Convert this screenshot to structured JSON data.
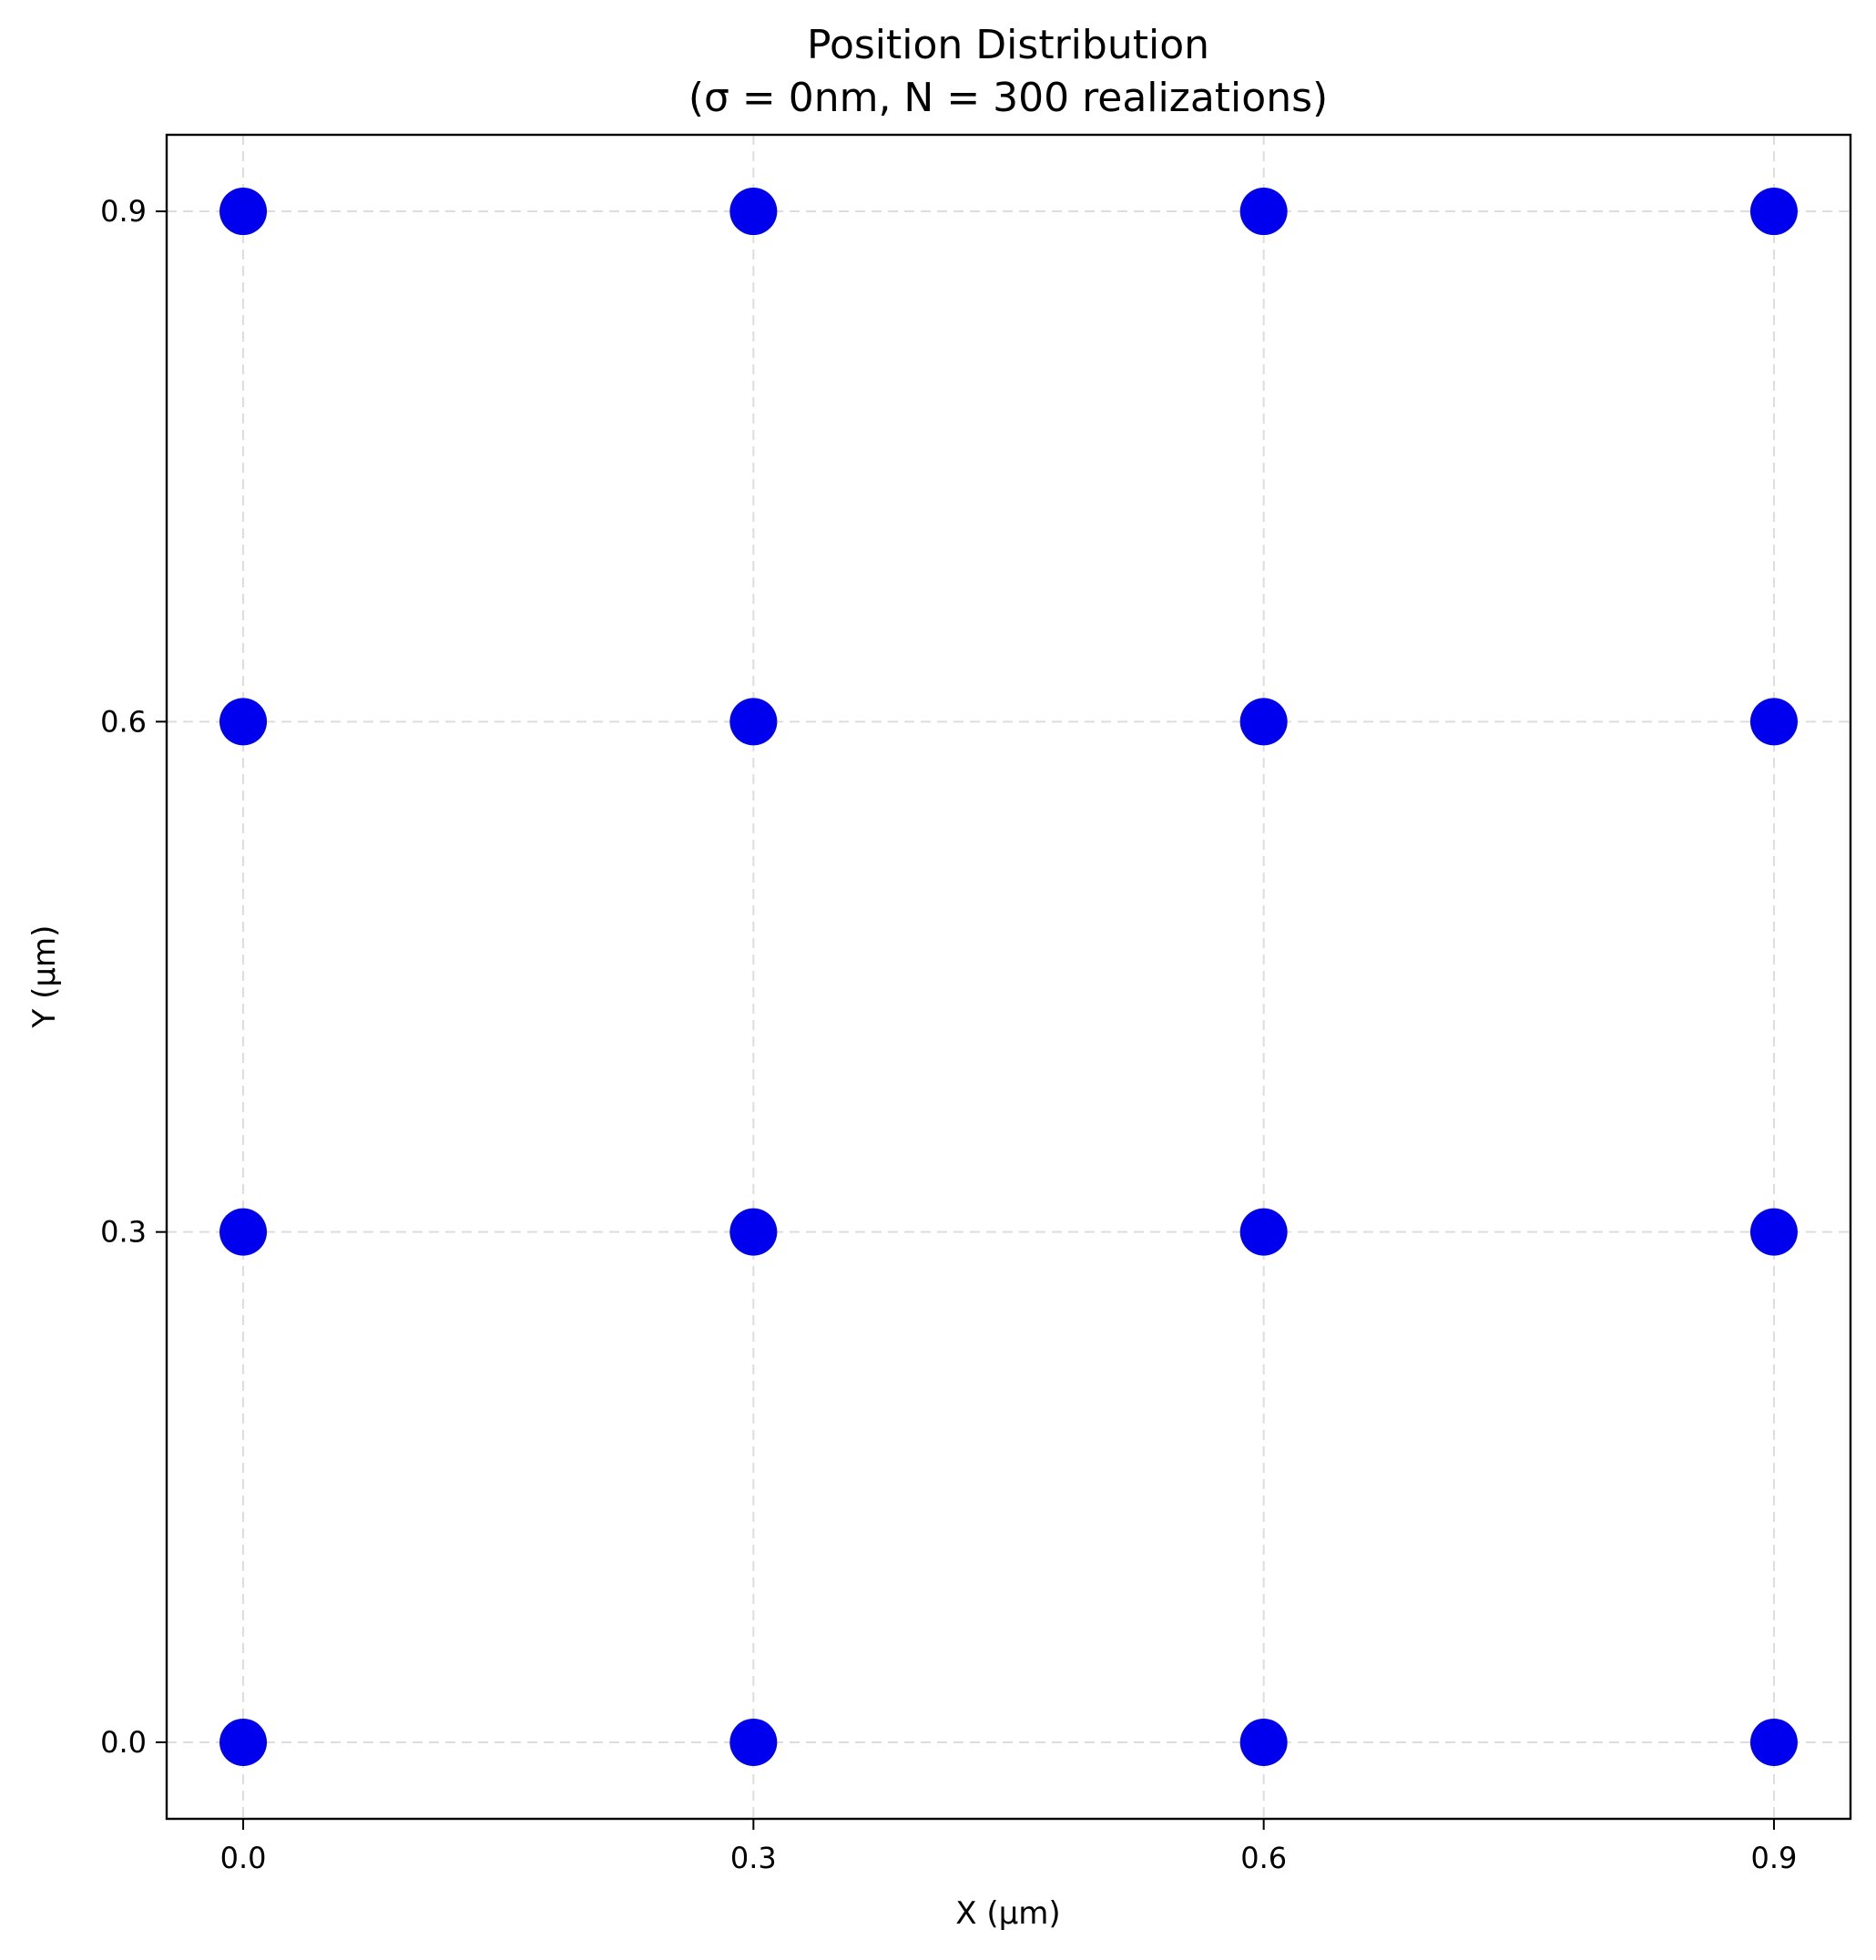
{
  "chart_data": {
    "type": "scatter",
    "title": "Position Distribution",
    "subtitle": "(σ = 0nm, N = 300 realizations)",
    "xlabel": "X (µm)",
    "ylabel": "Y (µm)",
    "xlim": [
      -0.045,
      0.945
    ],
    "ylim": [
      -0.045,
      0.945
    ],
    "xticks": [
      0.0,
      0.3,
      0.6,
      0.9
    ],
    "yticks": [
      0.0,
      0.3,
      0.6,
      0.9
    ],
    "xtick_labels": [
      "0.0",
      "0.3",
      "0.6",
      "0.9"
    ],
    "ytick_labels": [
      "0.0",
      "0.3",
      "0.6",
      "0.9"
    ],
    "grid": true,
    "marker_color": "#0000ee",
    "points": [
      [
        0.0,
        0.0
      ],
      [
        0.3,
        0.0
      ],
      [
        0.6,
        0.0
      ],
      [
        0.9,
        0.0
      ],
      [
        0.0,
        0.3
      ],
      [
        0.3,
        0.3
      ],
      [
        0.6,
        0.3
      ],
      [
        0.9,
        0.3
      ],
      [
        0.0,
        0.6
      ],
      [
        0.3,
        0.6
      ],
      [
        0.6,
        0.6
      ],
      [
        0.9,
        0.6
      ],
      [
        0.0,
        0.9
      ],
      [
        0.3,
        0.9
      ],
      [
        0.6,
        0.9
      ],
      [
        0.9,
        0.9
      ]
    ]
  }
}
